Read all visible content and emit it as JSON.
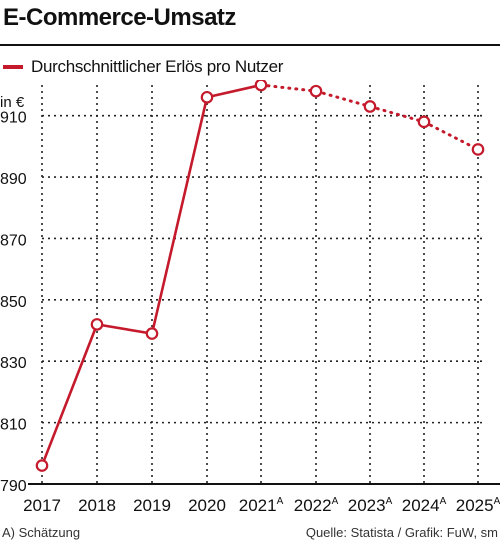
{
  "header": {
    "title": "E-Commerce-Umsatz"
  },
  "legend": {
    "label": "Durchschnittlicher Erlös pro Nutzer",
    "color": "#c41a2c"
  },
  "chart_data": {
    "type": "line",
    "title": "E-Commerce-Umsatz",
    "ylabel": "in €",
    "xlabel": "",
    "ylim": [
      790,
      920
    ],
    "yticks": [
      790,
      810,
      830,
      850,
      870,
      890,
      910
    ],
    "categories": [
      "2017",
      "2018",
      "2019",
      "2020",
      "2021",
      "2022",
      "2023",
      "2024",
      "2025"
    ],
    "category_superscripts": [
      "",
      "",
      "",
      "",
      "A",
      "A",
      "A",
      "A",
      "A"
    ],
    "series": [
      {
        "name": "Durchschnittlicher Erlös pro Nutzer",
        "color": "#c41a2c",
        "values": [
          796,
          842,
          839,
          916,
          920,
          918,
          913,
          908,
          899
        ],
        "estimated_from_index": 4
      }
    ],
    "grid": "vertical-dotted, horizontal-dotted",
    "legend_position": "top-left"
  },
  "footer": {
    "note": "A) Schätzung",
    "source": "Quelle: Statista / Grafik: FuW, sm"
  }
}
